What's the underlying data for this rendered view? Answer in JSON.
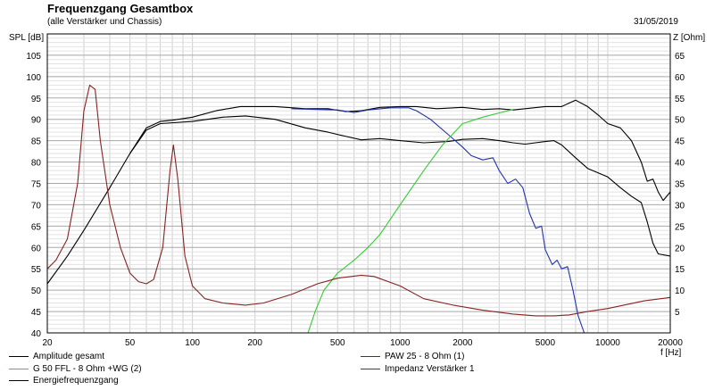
{
  "chart_data": {
    "type": "line",
    "title": "Frequenzgang Gesamtbox",
    "subtitle": "(alle Verstärker und Chassis)",
    "date": "31/05/2019",
    "ylabel_left": "SPL [dB]",
    "ylabel_right": "Z [Ohm]",
    "xlabel": "f [Hz]",
    "x_scale": "log",
    "xlim": [
      20,
      20000
    ],
    "ylim_left": [
      40,
      110
    ],
    "ylim_right": [
      0,
      70
    ],
    "grid": true,
    "x_ticks": [
      {
        "v": 20,
        "label": "20"
      },
      {
        "v": 50,
        "label": "50"
      },
      {
        "v": 100,
        "label": "100"
      },
      {
        "v": 200,
        "label": "200"
      },
      {
        "v": 500,
        "label": "500"
      },
      {
        "v": 1000,
        "label": "1000"
      },
      {
        "v": 2000,
        "label": "2000"
      },
      {
        "v": 5000,
        "label": "5000"
      },
      {
        "v": 10000,
        "label": "10000"
      },
      {
        "v": 20000,
        "label": "20000"
      }
    ],
    "y_ticks_left": [
      "40",
      "45",
      "50",
      "55",
      "60",
      "65",
      "70",
      "75",
      "80",
      "85",
      "90",
      "95",
      "100",
      "105"
    ],
    "y_ticks_right": [
      "5",
      "10",
      "15",
      "20",
      "25",
      "30",
      "35",
      "40",
      "45",
      "50",
      "55",
      "60",
      "65"
    ],
    "series": [
      {
        "name": "Amplitude gesamt",
        "color": "#000000",
        "axis": "left",
        "points": [
          [
            20,
            51.5
          ],
          [
            25,
            58
          ],
          [
            30,
            64
          ],
          [
            40,
            74
          ],
          [
            50,
            82
          ],
          [
            60,
            88
          ],
          [
            70,
            89.5
          ],
          [
            80,
            89.8
          ],
          [
            100,
            90.5
          ],
          [
            130,
            92
          ],
          [
            170,
            93
          ],
          [
            250,
            93
          ],
          [
            350,
            92.5
          ],
          [
            450,
            92.5
          ],
          [
            550,
            91.8
          ],
          [
            650,
            92
          ],
          [
            800,
            92.8
          ],
          [
            1000,
            93
          ],
          [
            1200,
            93
          ],
          [
            1500,
            92.5
          ],
          [
            2000,
            92.8
          ],
          [
            2500,
            92.3
          ],
          [
            3000,
            92.5
          ],
          [
            3500,
            92.2
          ],
          [
            4000,
            92.5
          ],
          [
            5000,
            93
          ],
          [
            6000,
            93
          ],
          [
            7000,
            94.5
          ],
          [
            8000,
            93
          ],
          [
            9000,
            91
          ],
          [
            10000,
            89
          ],
          [
            11500,
            88
          ],
          [
            13000,
            85
          ],
          [
            14500,
            80
          ],
          [
            15500,
            75.5
          ],
          [
            16500,
            76
          ],
          [
            17500,
            73
          ],
          [
            18500,
            71
          ],
          [
            20000,
            73
          ]
        ]
      },
      {
        "name": "Energiefrequenzgang",
        "color": "#000000",
        "axis": "left",
        "points": [
          [
            50,
            82
          ],
          [
            60,
            87.5
          ],
          [
            70,
            89
          ],
          [
            100,
            89.5
          ],
          [
            140,
            90.5
          ],
          [
            180,
            90.8
          ],
          [
            250,
            90
          ],
          [
            350,
            88
          ],
          [
            450,
            87
          ],
          [
            550,
            86
          ],
          [
            650,
            85.2
          ],
          [
            800,
            85.5
          ],
          [
            1000,
            85
          ],
          [
            1300,
            84.5
          ],
          [
            1700,
            84.8
          ],
          [
            2000,
            85.3
          ],
          [
            2500,
            85.5
          ],
          [
            3000,
            85
          ],
          [
            3500,
            84.5
          ],
          [
            4000,
            84.2
          ],
          [
            5000,
            84.8
          ],
          [
            5500,
            85
          ],
          [
            6000,
            84
          ],
          [
            7000,
            81
          ],
          [
            8000,
            78.5
          ],
          [
            10000,
            76.5
          ],
          [
            11500,
            74
          ],
          [
            13000,
            72
          ],
          [
            14500,
            70.5
          ],
          [
            15500,
            66
          ],
          [
            16500,
            61
          ],
          [
            17500,
            58.5
          ],
          [
            20000,
            58
          ]
        ]
      },
      {
        "name": "PAW 25 - 8 Ohm (1)",
        "color": "#2233aa",
        "axis": "left",
        "points": [
          [
            300,
            92.5
          ],
          [
            400,
            92.3
          ],
          [
            500,
            92.2
          ],
          [
            600,
            91.6
          ],
          [
            700,
            92.2
          ],
          [
            900,
            92.7
          ],
          [
            1100,
            92.7
          ],
          [
            1200,
            92
          ],
          [
            1400,
            90
          ],
          [
            1700,
            86.5
          ],
          [
            2000,
            83.5
          ],
          [
            2200,
            81.5
          ],
          [
            2500,
            80.5
          ],
          [
            2800,
            81
          ],
          [
            3000,
            78
          ],
          [
            3300,
            75
          ],
          [
            3600,
            76
          ],
          [
            3900,
            74
          ],
          [
            4200,
            68
          ],
          [
            4500,
            64.5
          ],
          [
            4800,
            65
          ],
          [
            5000,
            59.5
          ],
          [
            5400,
            56
          ],
          [
            5700,
            57
          ],
          [
            6000,
            55
          ],
          [
            6400,
            55.5
          ],
          [
            6800,
            50
          ],
          [
            7200,
            44
          ],
          [
            7700,
            40
          ],
          [
            20000,
            40
          ]
        ]
      },
      {
        "name": "G 50 FFL - 8 Ohm +WG (2)",
        "color": "#33cc33",
        "axis": "left",
        "points": [
          [
            20,
            40
          ],
          [
            360,
            40
          ],
          [
            390,
            45
          ],
          [
            430,
            50
          ],
          [
            500,
            54
          ],
          [
            600,
            57
          ],
          [
            700,
            60
          ],
          [
            800,
            63
          ],
          [
            1000,
            70
          ],
          [
            1300,
            78
          ],
          [
            1600,
            84
          ],
          [
            2000,
            89
          ],
          [
            2500,
            90.5
          ],
          [
            3000,
            91.5
          ],
          [
            3500,
            92.3
          ]
        ]
      },
      {
        "name": "Impedanz Verstärker 1",
        "color": "#882222",
        "axis": "right",
        "points": [
          [
            20,
            15
          ],
          [
            22,
            17
          ],
          [
            25,
            22
          ],
          [
            28,
            35
          ],
          [
            30,
            52
          ],
          [
            32,
            58
          ],
          [
            34,
            57
          ],
          [
            36,
            45
          ],
          [
            40,
            30
          ],
          [
            45,
            20
          ],
          [
            50,
            14
          ],
          [
            55,
            12
          ],
          [
            60,
            11.5
          ],
          [
            65,
            12.5
          ],
          [
            72,
            20
          ],
          [
            78,
            38
          ],
          [
            81,
            44
          ],
          [
            85,
            36
          ],
          [
            92,
            18
          ],
          [
            100,
            11
          ],
          [
            115,
            8
          ],
          [
            140,
            7
          ],
          [
            180,
            6.5
          ],
          [
            220,
            7
          ],
          [
            300,
            9
          ],
          [
            400,
            11.5
          ],
          [
            500,
            12.8
          ],
          [
            600,
            13.3
          ],
          [
            650,
            13.5
          ],
          [
            750,
            13.2
          ],
          [
            1000,
            11
          ],
          [
            1300,
            8
          ],
          [
            1800,
            6.5
          ],
          [
            2500,
            5.3
          ],
          [
            3500,
            4.4
          ],
          [
            4500,
            4
          ],
          [
            5500,
            4
          ],
          [
            6500,
            4.2
          ],
          [
            8000,
            5
          ],
          [
            10000,
            5.7
          ],
          [
            15000,
            7.5
          ],
          [
            20000,
            8.3
          ]
        ]
      }
    ],
    "legend": [
      {
        "name": "Amplitude gesamt",
        "color": "#000000"
      },
      {
        "name": "G 50 FFL - 8 Ohm +WG (2)",
        "color": "#33cc33"
      },
      {
        "name": "Energiefrequenzgang",
        "color": "#000000"
      },
      {
        "name": "PAW 25 - 8 Ohm (1)",
        "color": "#2233aa"
      },
      {
        "name": "Impedanz Verstärker 1",
        "color": "#882222"
      }
    ]
  }
}
